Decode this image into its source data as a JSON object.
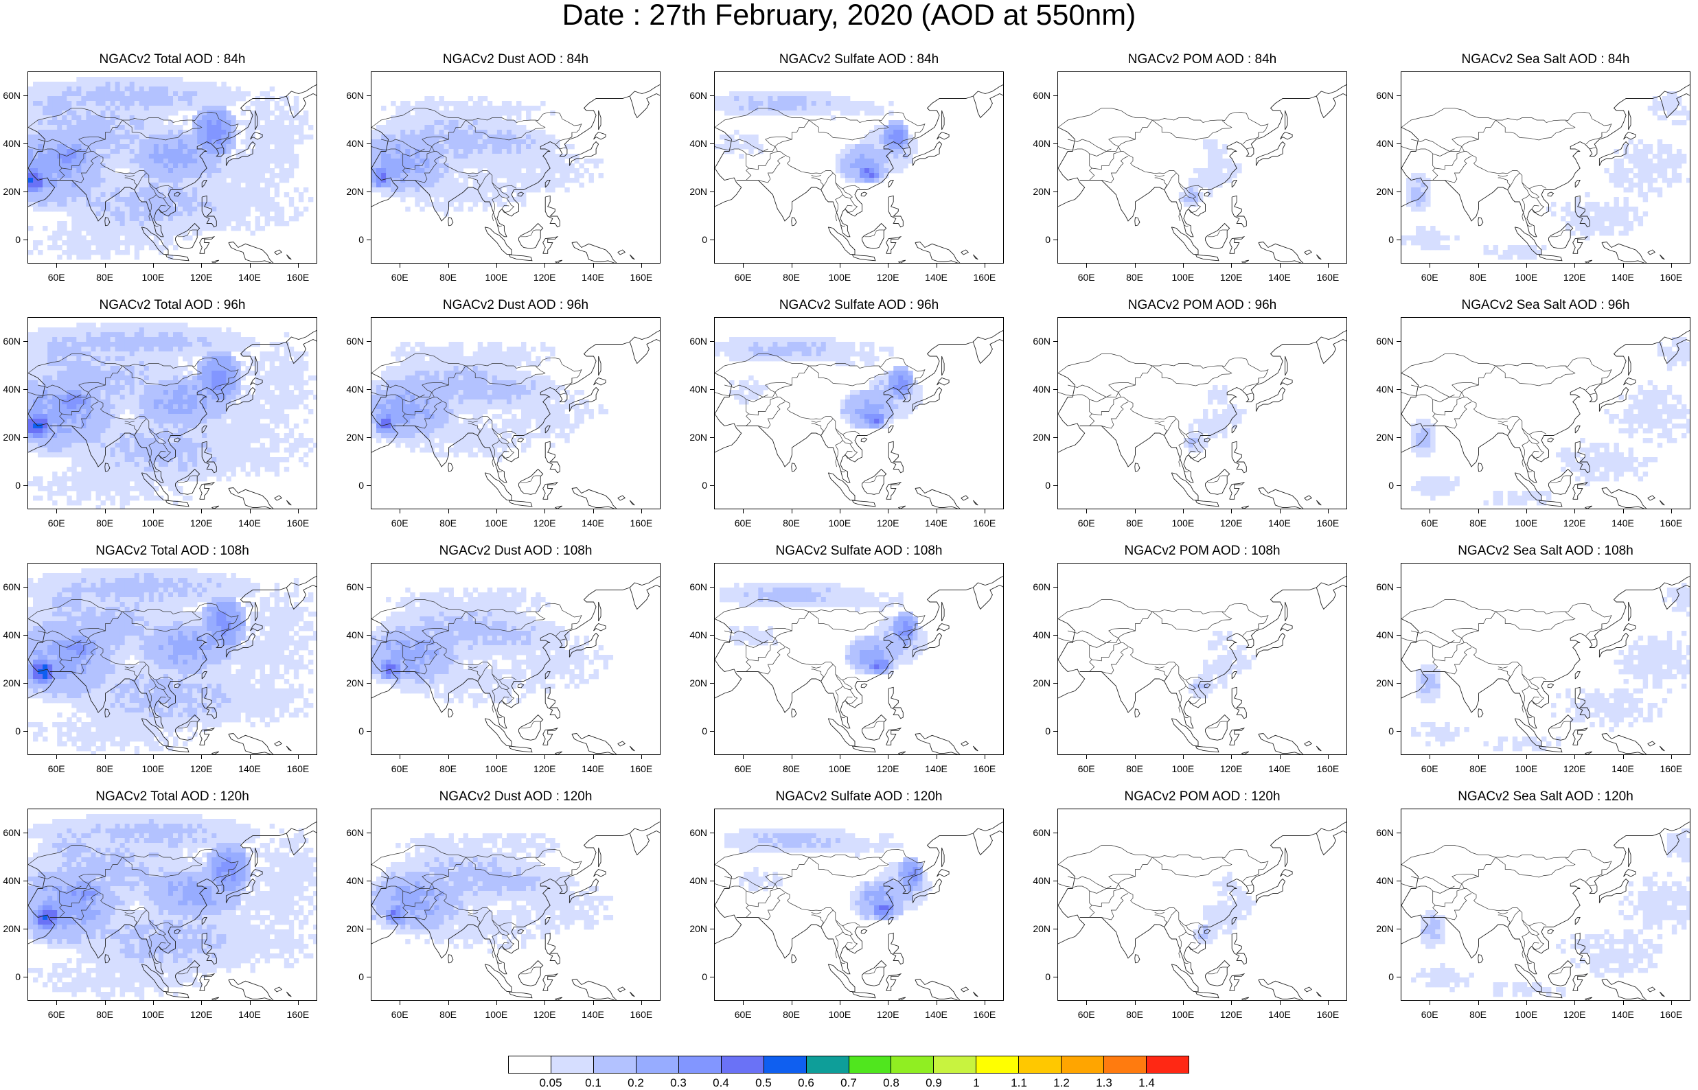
{
  "title": "Date : 27th February, 2020 (AOD at 550nm)",
  "lat_ticks": [
    "60N",
    "40N",
    "20N",
    "0"
  ],
  "lon_ticks": [
    "60E",
    "80E",
    "100E",
    "120E",
    "140E",
    "160E"
  ],
  "map_extent": {
    "lon": [
      48,
      168
    ],
    "lat": [
      -10,
      70
    ]
  },
  "rows": [
    {
      "panels": [
        {
          "title": "NGACv2 Total AOD : 84h",
          "field": "total",
          "lead_hours": 84
        },
        {
          "title": "NGACv2 Dust AOD : 84h",
          "field": "dust",
          "lead_hours": 84
        },
        {
          "title": "NGACv2 Sulfate AOD : 84h",
          "field": "sulfate",
          "lead_hours": 84
        },
        {
          "title": "NGACv2 POM AOD : 84h",
          "field": "pom",
          "lead_hours": 84
        },
        {
          "title": "NGACv2 Sea Salt AOD : 84h",
          "field": "seasalt",
          "lead_hours": 84
        }
      ]
    },
    {
      "panels": [
        {
          "title": "NGACv2 Total AOD : 96h",
          "field": "total",
          "lead_hours": 96
        },
        {
          "title": "NGACv2 Dust AOD : 96h",
          "field": "dust",
          "lead_hours": 96
        },
        {
          "title": "NGACv2 Sulfate AOD : 96h",
          "field": "sulfate",
          "lead_hours": 96
        },
        {
          "title": "NGACv2 POM AOD : 96h",
          "field": "pom",
          "lead_hours": 96
        },
        {
          "title": "NGACv2 Sea Salt AOD : 96h",
          "field": "seasalt",
          "lead_hours": 96
        }
      ]
    },
    {
      "panels": [
        {
          "title": "NGACv2 Total AOD : 108h",
          "field": "total",
          "lead_hours": 108
        },
        {
          "title": "NGACv2 Dust AOD : 108h",
          "field": "dust",
          "lead_hours": 108
        },
        {
          "title": "NGACv2 Sulfate AOD : 108h",
          "field": "sulfate",
          "lead_hours": 108
        },
        {
          "title": "NGACv2 POM AOD : 108h",
          "field": "pom",
          "lead_hours": 108
        },
        {
          "title": "NGACv2 Sea Salt AOD : 108h",
          "field": "seasalt",
          "lead_hours": 108
        }
      ]
    },
    {
      "panels": [
        {
          "title": "NGACv2 Total AOD : 120h",
          "field": "total",
          "lead_hours": 120
        },
        {
          "title": "NGACv2 Dust AOD : 120h",
          "field": "dust",
          "lead_hours": 120
        },
        {
          "title": "NGACv2 Sulfate AOD : 120h",
          "field": "sulfate",
          "lead_hours": 120
        },
        {
          "title": "NGACv2 POM AOD : 120h",
          "field": "pom",
          "lead_hours": 120
        },
        {
          "title": "NGACv2 Sea Salt  AOD : 120h",
          "field": "seasalt",
          "lead_hours": 120
        }
      ]
    }
  ],
  "colorbar": {
    "labels": [
      "0.05",
      "0.1",
      "0.2",
      "0.3",
      "0.4",
      "0.5",
      "0.6",
      "0.7",
      "0.8",
      "0.9",
      "1",
      "1.1",
      "1.2",
      "1.3",
      "1.4"
    ],
    "colors": [
      "#ffffff",
      "#d6deff",
      "#b3c2ff",
      "#97acff",
      "#8296ff",
      "#6a72f6",
      "#0f5ff0",
      "#0e9e99",
      "#50e61e",
      "#90ee22",
      "#c8f33f",
      "#ffff00",
      "#ffc800",
      "#ffa500",
      "#ff7b0f",
      "#ff2814"
    ]
  }
}
